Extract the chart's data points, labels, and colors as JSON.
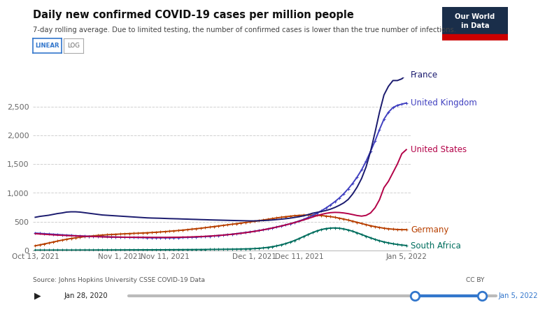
{
  "title": "Daily new confirmed COVID-19 cases per million people",
  "subtitle": "7-day rolling average. Due to limited testing, the number of confirmed cases is lower than the true number of infections.",
  "source": "Source: Johns Hopkins University CSSE COVID-19 Data",
  "cc_by": "CC BY",
  "owid_logo_text": "Our World\nin Data",
  "ylim": [
    0,
    3000
  ],
  "yticks": [
    0,
    500,
    1000,
    1500,
    2000,
    2500
  ],
  "slider_left": "Jan 28, 2020",
  "slider_right": "Jan 5, 2022",
  "background_color": "#ffffff",
  "grid_color": "#d0d0d0",
  "axis_label_color": "#666666",
  "series": {
    "France": {
      "color": "#1a1a6e",
      "marker": null,
      "linewidth": 1.4,
      "data_x": [
        0,
        1,
        2,
        3,
        4,
        5,
        6,
        7,
        8,
        9,
        10,
        11,
        12,
        13,
        14,
        15,
        16,
        17,
        18,
        19,
        20,
        21,
        22,
        23,
        24,
        25,
        26,
        27,
        28,
        29,
        30,
        31,
        32,
        33,
        34,
        35,
        36,
        37,
        38,
        39,
        40,
        41,
        42,
        43,
        44,
        45,
        46,
        47,
        48,
        49,
        50,
        51,
        52,
        53,
        54,
        55,
        56,
        57,
        58,
        59,
        60,
        61,
        62,
        63,
        64,
        65,
        66,
        67,
        68,
        69,
        70,
        71,
        72,
        73,
        74,
        75,
        76,
        77,
        78,
        79,
        80,
        81,
        82,
        83
      ],
      "data_y": [
        575,
        590,
        600,
        610,
        625,
        640,
        650,
        665,
        670,
        670,
        665,
        655,
        645,
        635,
        625,
        615,
        610,
        605,
        600,
        595,
        590,
        585,
        580,
        575,
        570,
        565,
        562,
        560,
        558,
        555,
        552,
        550,
        548,
        545,
        543,
        540,
        538,
        535,
        533,
        530,
        528,
        526,
        524,
        522,
        520,
        518,
        516,
        514,
        512,
        512,
        515,
        518,
        522,
        528,
        535,
        542,
        550,
        560,
        572,
        585,
        600,
        620,
        645,
        660,
        675,
        692,
        715,
        745,
        782,
        825,
        885,
        980,
        1100,
        1250,
        1450,
        1720,
        2050,
        2400,
        2700,
        2850,
        2950,
        2950,
        2980,
        3050
      ]
    },
    "United Kingdom": {
      "color": "#4040c0",
      "marker": "+",
      "markersize": 3,
      "markeredgewidth": 0.7,
      "linewidth": 1.4,
      "data_x": [
        0,
        1,
        2,
        3,
        4,
        5,
        6,
        7,
        8,
        9,
        10,
        11,
        12,
        13,
        14,
        15,
        16,
        17,
        18,
        19,
        20,
        21,
        22,
        23,
        24,
        25,
        26,
        27,
        28,
        29,
        30,
        31,
        32,
        33,
        34,
        35,
        36,
        37,
        38,
        39,
        40,
        41,
        42,
        43,
        44,
        45,
        46,
        47,
        48,
        49,
        50,
        51,
        52,
        53,
        54,
        55,
        56,
        57,
        58,
        59,
        60,
        61,
        62,
        63,
        64,
        65,
        66,
        67,
        68,
        69,
        70,
        71,
        72,
        73,
        74,
        75,
        76,
        77,
        78,
        79,
        80,
        81,
        82,
        83
      ],
      "data_y": [
        300,
        295,
        290,
        285,
        280,
        275,
        270,
        265,
        260,
        255,
        252,
        248,
        245,
        242,
        240,
        238,
        235,
        233,
        232,
        230,
        228,
        226,
        225,
        224,
        223,
        222,
        221,
        221,
        221,
        220,
        220,
        221,
        222,
        224,
        226,
        228,
        232,
        236,
        241,
        246,
        252,
        258,
        265,
        273,
        281,
        290,
        300,
        310,
        320,
        332,
        344,
        358,
        372,
        388,
        405,
        423,
        442,
        462,
        485,
        510,
        538,
        570,
        605,
        645,
        688,
        735,
        788,
        845,
        910,
        985,
        1070,
        1165,
        1275,
        1400,
        1550,
        1720,
        1900,
        2100,
        2280,
        2400,
        2480,
        2520,
        2540,
        2560
      ]
    },
    "United States": {
      "color": "#b30047",
      "marker": null,
      "linewidth": 1.4,
      "data_x": [
        0,
        1,
        2,
        3,
        4,
        5,
        6,
        7,
        8,
        9,
        10,
        11,
        12,
        13,
        14,
        15,
        16,
        17,
        18,
        19,
        20,
        21,
        22,
        23,
        24,
        25,
        26,
        27,
        28,
        29,
        30,
        31,
        32,
        33,
        34,
        35,
        36,
        37,
        38,
        39,
        40,
        41,
        42,
        43,
        44,
        45,
        46,
        47,
        48,
        49,
        50,
        51,
        52,
        53,
        54,
        55,
        56,
        57,
        58,
        59,
        60,
        61,
        62,
        63,
        64,
        65,
        66,
        67,
        68,
        69,
        70,
        71,
        72,
        73,
        74,
        75,
        76,
        77,
        78,
        79,
        80,
        81,
        82,
        83
      ],
      "data_y": [
        290,
        285,
        280,
        275,
        270,
        265,
        262,
        258,
        255,
        252,
        248,
        245,
        242,
        240,
        238,
        235,
        233,
        232,
        231,
        230,
        229,
        228,
        228,
        227,
        226,
        226,
        225,
        225,
        225,
        225,
        226,
        227,
        228,
        230,
        232,
        234,
        237,
        240,
        244,
        248,
        253,
        259,
        265,
        272,
        280,
        288,
        297,
        307,
        318,
        330,
        343,
        357,
        372,
        388,
        405,
        423,
        442,
        462,
        483,
        505,
        528,
        553,
        578,
        603,
        625,
        643,
        655,
        660,
        658,
        650,
        638,
        622,
        605,
        595,
        608,
        650,
        740,
        880,
        1090,
        1200,
        1350,
        1500,
        1680,
        1750
      ]
    },
    "Germany": {
      "color": "#b84000",
      "marker": "+",
      "markersize": 3,
      "markeredgewidth": 0.7,
      "linewidth": 1.4,
      "data_x": [
        0,
        1,
        2,
        3,
        4,
        5,
        6,
        7,
        8,
        9,
        10,
        11,
        12,
        13,
        14,
        15,
        16,
        17,
        18,
        19,
        20,
        21,
        22,
        23,
        24,
        25,
        26,
        27,
        28,
        29,
        30,
        31,
        32,
        33,
        34,
        35,
        36,
        37,
        38,
        39,
        40,
        41,
        42,
        43,
        44,
        45,
        46,
        47,
        48,
        49,
        50,
        51,
        52,
        53,
        54,
        55,
        56,
        57,
        58,
        59,
        60,
        61,
        62,
        63,
        64,
        65,
        66,
        67,
        68,
        69,
        70,
        71,
        72,
        73,
        74,
        75,
        76,
        77,
        78,
        79,
        80,
        81,
        82,
        83
      ],
      "data_y": [
        80,
        95,
        112,
        128,
        145,
        162,
        178,
        193,
        207,
        218,
        228,
        238,
        246,
        253,
        260,
        266,
        271,
        276,
        280,
        284,
        288,
        292,
        295,
        298,
        302,
        306,
        310,
        315,
        320,
        326,
        332,
        338,
        345,
        352,
        360,
        368,
        376,
        385,
        394,
        404,
        414,
        424,
        434,
        444,
        454,
        464,
        474,
        484,
        494,
        504,
        516,
        528,
        540,
        552,
        564,
        575,
        585,
        594,
        602,
        608,
        612,
        614,
        613,
        610,
        605,
        597,
        587,
        575,
        560,
        544,
        526,
        507,
        487,
        467,
        447,
        428,
        412,
        398,
        385,
        375,
        368,
        363,
        360,
        360
      ]
    },
    "South Africa": {
      "color": "#006e5e",
      "marker": "+",
      "markersize": 3,
      "markeredgewidth": 0.7,
      "linewidth": 1.4,
      "data_x": [
        0,
        1,
        2,
        3,
        4,
        5,
        6,
        7,
        8,
        9,
        10,
        11,
        12,
        13,
        14,
        15,
        16,
        17,
        18,
        19,
        20,
        21,
        22,
        23,
        24,
        25,
        26,
        27,
        28,
        29,
        30,
        31,
        32,
        33,
        34,
        35,
        36,
        37,
        38,
        39,
        40,
        41,
        42,
        43,
        44,
        45,
        46,
        47,
        48,
        49,
        50,
        51,
        52,
        53,
        54,
        55,
        56,
        57,
        58,
        59,
        60,
        61,
        62,
        63,
        64,
        65,
        66,
        67,
        68,
        69,
        70,
        71,
        72,
        73,
        74,
        75,
        76,
        77,
        78,
        79,
        80,
        81,
        82,
        83
      ],
      "data_y": [
        4,
        4,
        4,
        4,
        5,
        5,
        5,
        5,
        5,
        5,
        6,
        6,
        6,
        6,
        7,
        7,
        7,
        7,
        8,
        8,
        8,
        9,
        9,
        9,
        10,
        10,
        10,
        11,
        11,
        11,
        12,
        12,
        13,
        13,
        14,
        14,
        15,
        15,
        16,
        17,
        17,
        18,
        19,
        20,
        21,
        22,
        24,
        26,
        28,
        31,
        36,
        43,
        52,
        64,
        78,
        96,
        118,
        143,
        172,
        205,
        240,
        275,
        308,
        338,
        362,
        378,
        387,
        390,
        385,
        372,
        355,
        332,
        305,
        276,
        246,
        218,
        191,
        167,
        147,
        130,
        115,
        103,
        93,
        85
      ]
    }
  },
  "label_config": {
    "France": {
      "y": 3050,
      "color": "#1a1a6e"
    },
    "United Kingdom": {
      "y": 2560,
      "color": "#4040c0"
    },
    "United States": {
      "y": 1750,
      "color": "#b30047"
    },
    "Germany": {
      "y": 360,
      "color": "#b84000"
    },
    "South Africa": {
      "y": 85,
      "color": "#006e5e"
    }
  }
}
